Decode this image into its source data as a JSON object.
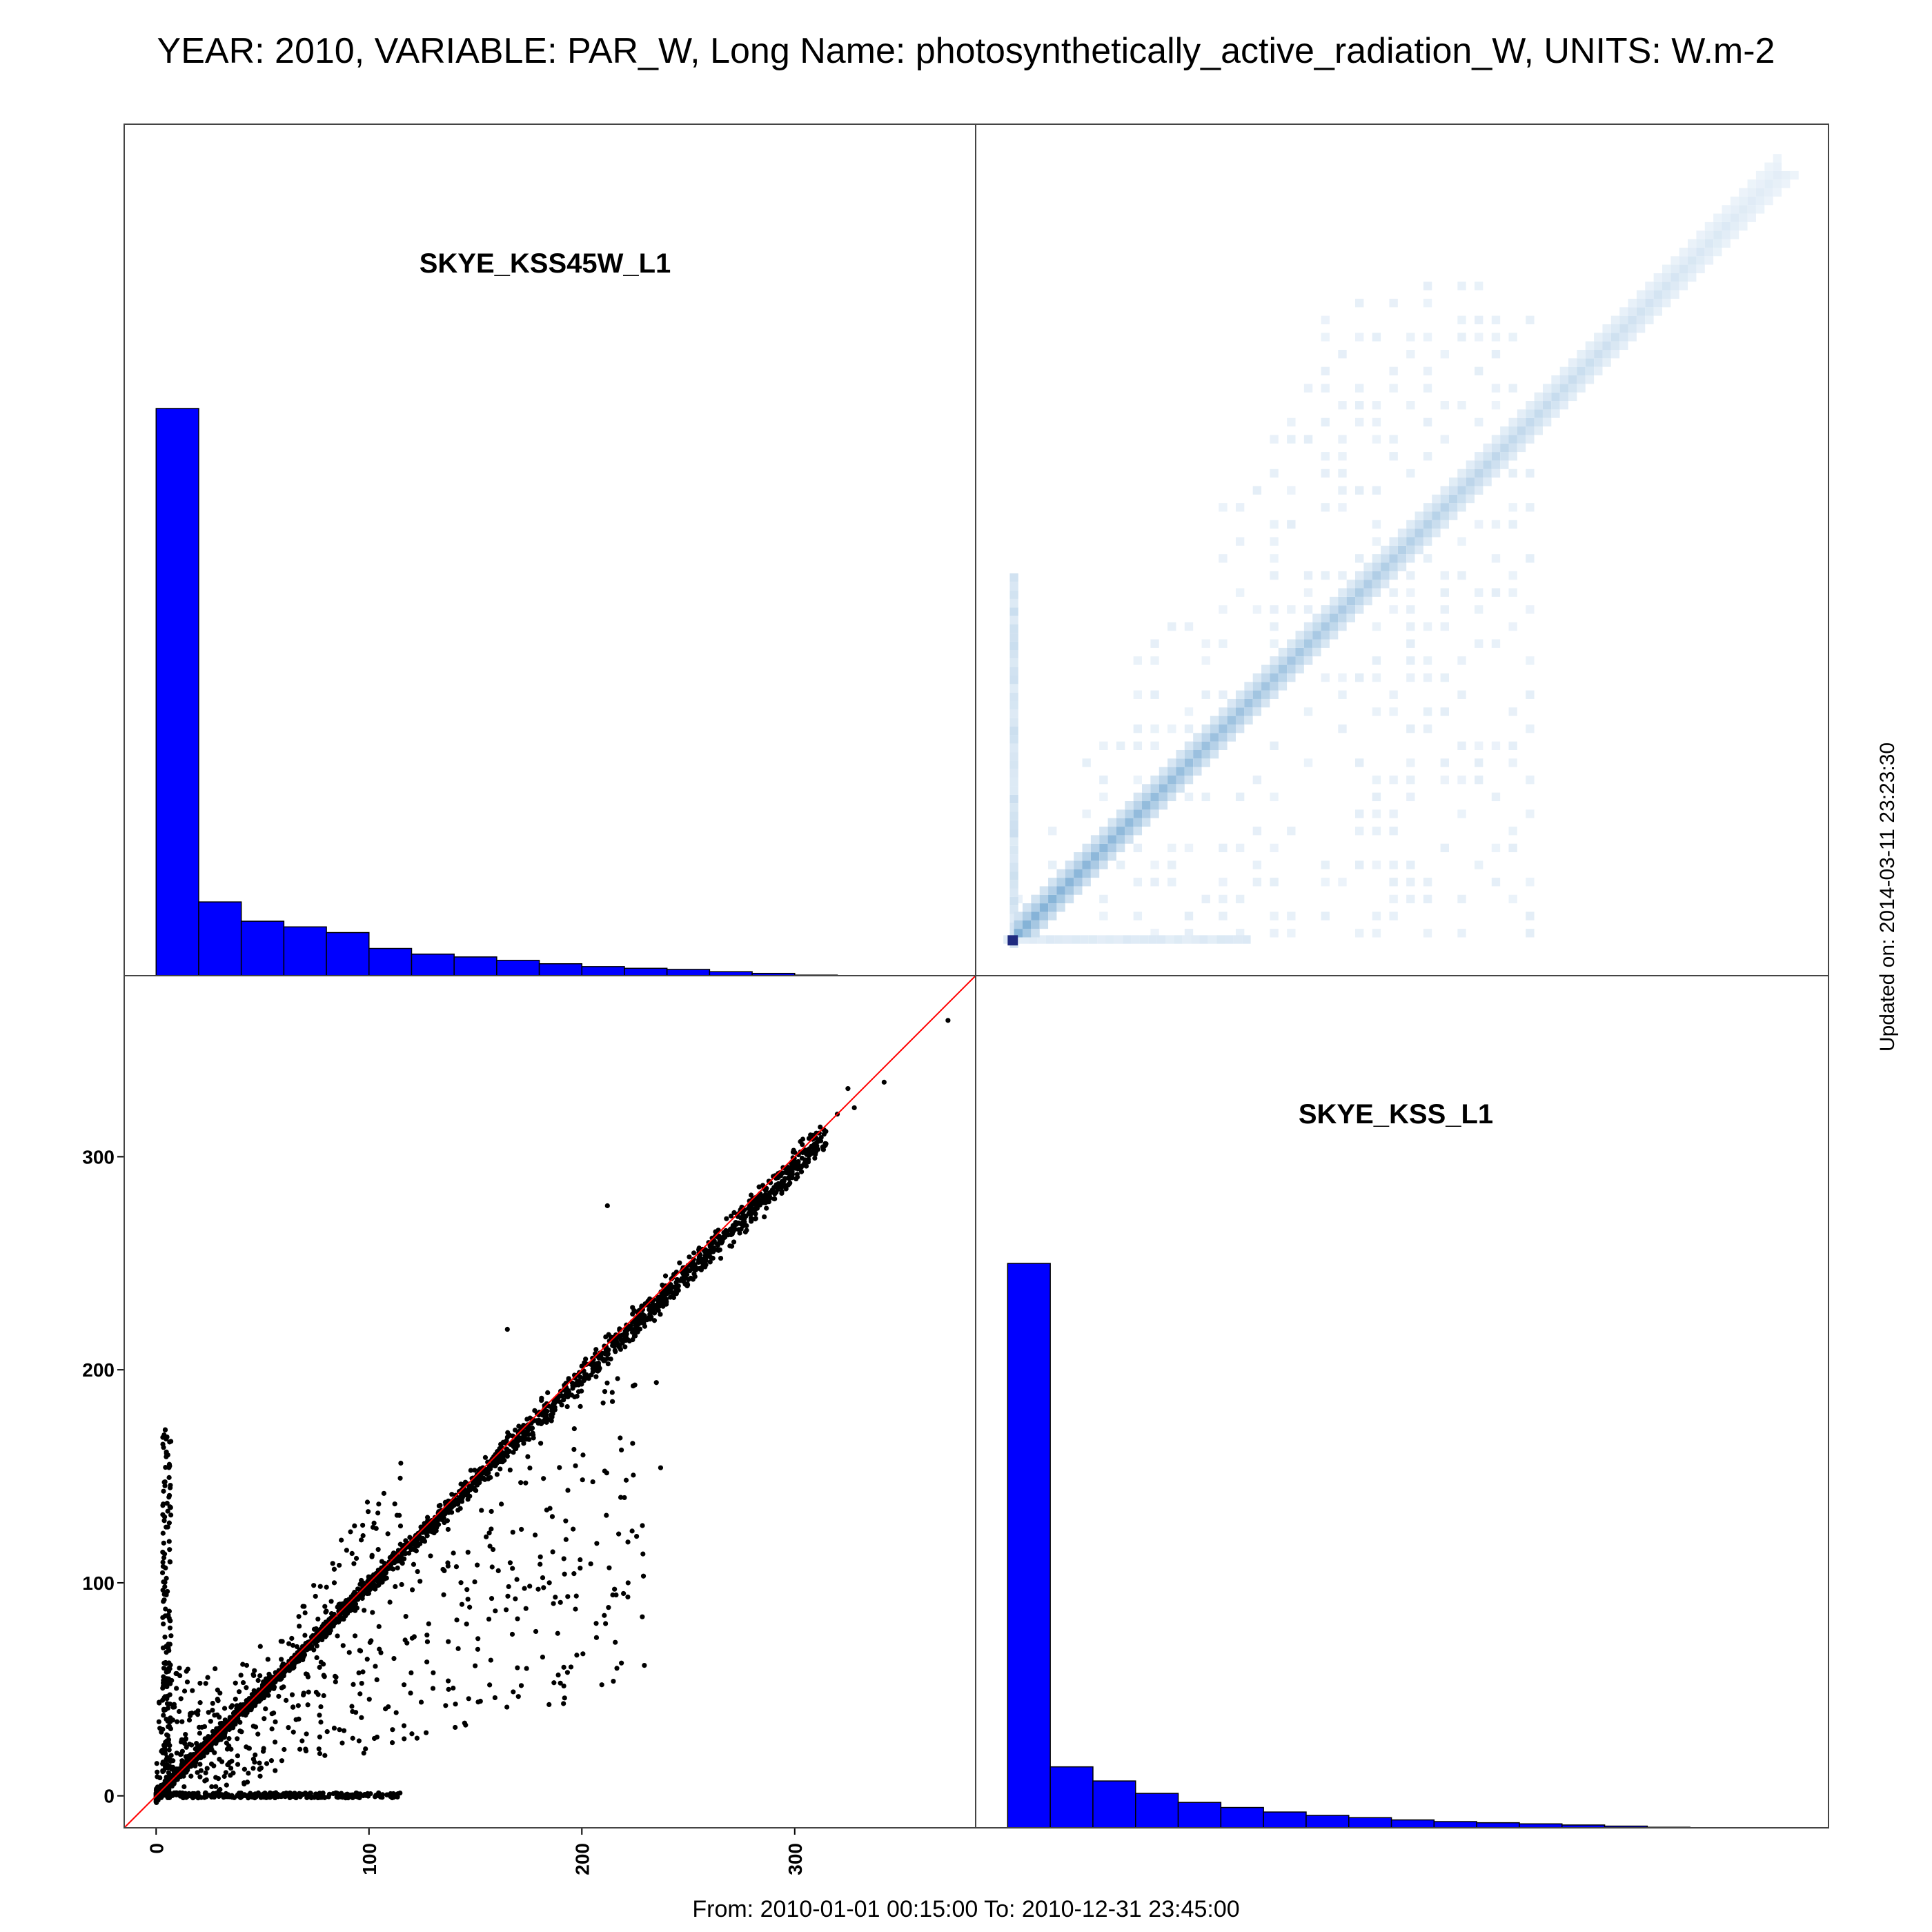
{
  "title": "YEAR: 2010, VARIABLE: PAR_W, Long Name: photosynthetically_active_radiation_W, UNITS: W.m-2",
  "footer": "From: 2010-01-01 00:15:00 To: 2010-12-31 23:45:00",
  "updated": "Updated on: 2014-03-11 23:23:30",
  "colors": {
    "histogram_fill": "#0000FF",
    "reference_line": "#FF0000",
    "points": "#000000",
    "density_low": "#F2F7FC",
    "density_high": "#2878B8",
    "density_peak": "#1F2A80"
  },
  "chart_data": [
    {
      "type": "histogram",
      "panel": "top-left",
      "label": "SKYE_KSS45W_L1",
      "bin_edges": [
        0,
        20,
        40,
        60,
        80,
        100,
        120,
        140,
        160,
        180,
        200,
        220,
        240,
        260,
        280,
        300,
        320,
        340,
        360
      ],
      "counts": [
        1000,
        130,
        96,
        86,
        76,
        48,
        38,
        33,
        27,
        21,
        16,
        13,
        11,
        7,
        4,
        1,
        0,
        0
      ],
      "xlim": [
        -15,
        385
      ]
    },
    {
      "type": "heatmap",
      "panel": "top-right",
      "description_free": true,
      "xlim": [
        -15,
        385
      ],
      "ylim": [
        -15,
        385
      ]
    },
    {
      "type": "scatter",
      "panel": "bottom-left",
      "x_ticks": [
        "0",
        "100",
        "200",
        "300"
      ],
      "y_ticks": [
        "0",
        "100",
        "200",
        "300"
      ],
      "xlim": [
        -15,
        385
      ],
      "ylim": [
        -15,
        385
      ],
      "reference_line": "y = x",
      "max_point": [
        372,
        364
      ]
    },
    {
      "type": "histogram",
      "panel": "bottom-right",
      "label": "SKYE_KSS_L1",
      "bin_edges": [
        0,
        20,
        40,
        60,
        80,
        100,
        120,
        140,
        160,
        180,
        200,
        220,
        240,
        260,
        280,
        300,
        320,
        340,
        360
      ],
      "counts": [
        1000,
        108,
        83,
        61,
        45,
        36,
        28,
        22,
        18,
        14,
        11,
        9,
        7,
        5,
        3,
        1,
        0,
        0
      ],
      "xlim": [
        -15,
        385
      ]
    }
  ]
}
